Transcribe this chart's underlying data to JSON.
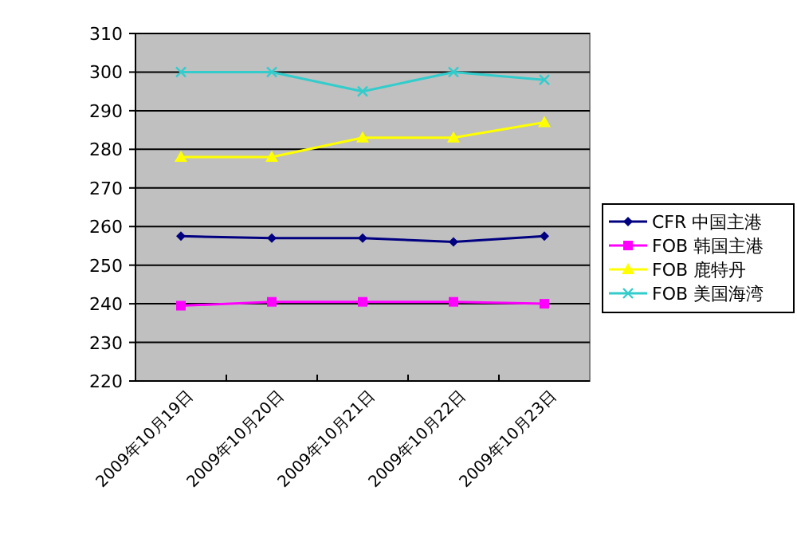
{
  "chart_data": {
    "type": "line",
    "categories": [
      "2009年10月19日",
      "2009年10月20日",
      "2009年10月21日",
      "2009年10月22日",
      "2009年10月23日"
    ],
    "ylim": [
      220,
      310
    ],
    "yticks": [
      220,
      230,
      240,
      250,
      260,
      270,
      280,
      290,
      300,
      310
    ],
    "grid": "y",
    "legend": "right",
    "line_style": "solid",
    "series": [
      {
        "name": "CFR 中国主港",
        "color": "#000080",
        "marker": "diamond",
        "values": [
          257.5,
          257,
          257,
          256,
          257.5
        ]
      },
      {
        "name": "FOB 韩国主港",
        "color": "#ff00ff",
        "marker": "square",
        "values": [
          239.5,
          240.5,
          240.5,
          240.5,
          240
        ]
      },
      {
        "name": "FOB 鹿特丹",
        "color": "#ffff00",
        "marker": "triangle",
        "values": [
          278,
          278,
          283,
          283,
          287
        ]
      },
      {
        "name": "FOB 美国海湾",
        "color": "#33cccc",
        "marker": "cross",
        "values": [
          300,
          300,
          295,
          300,
          298
        ]
      }
    ]
  }
}
